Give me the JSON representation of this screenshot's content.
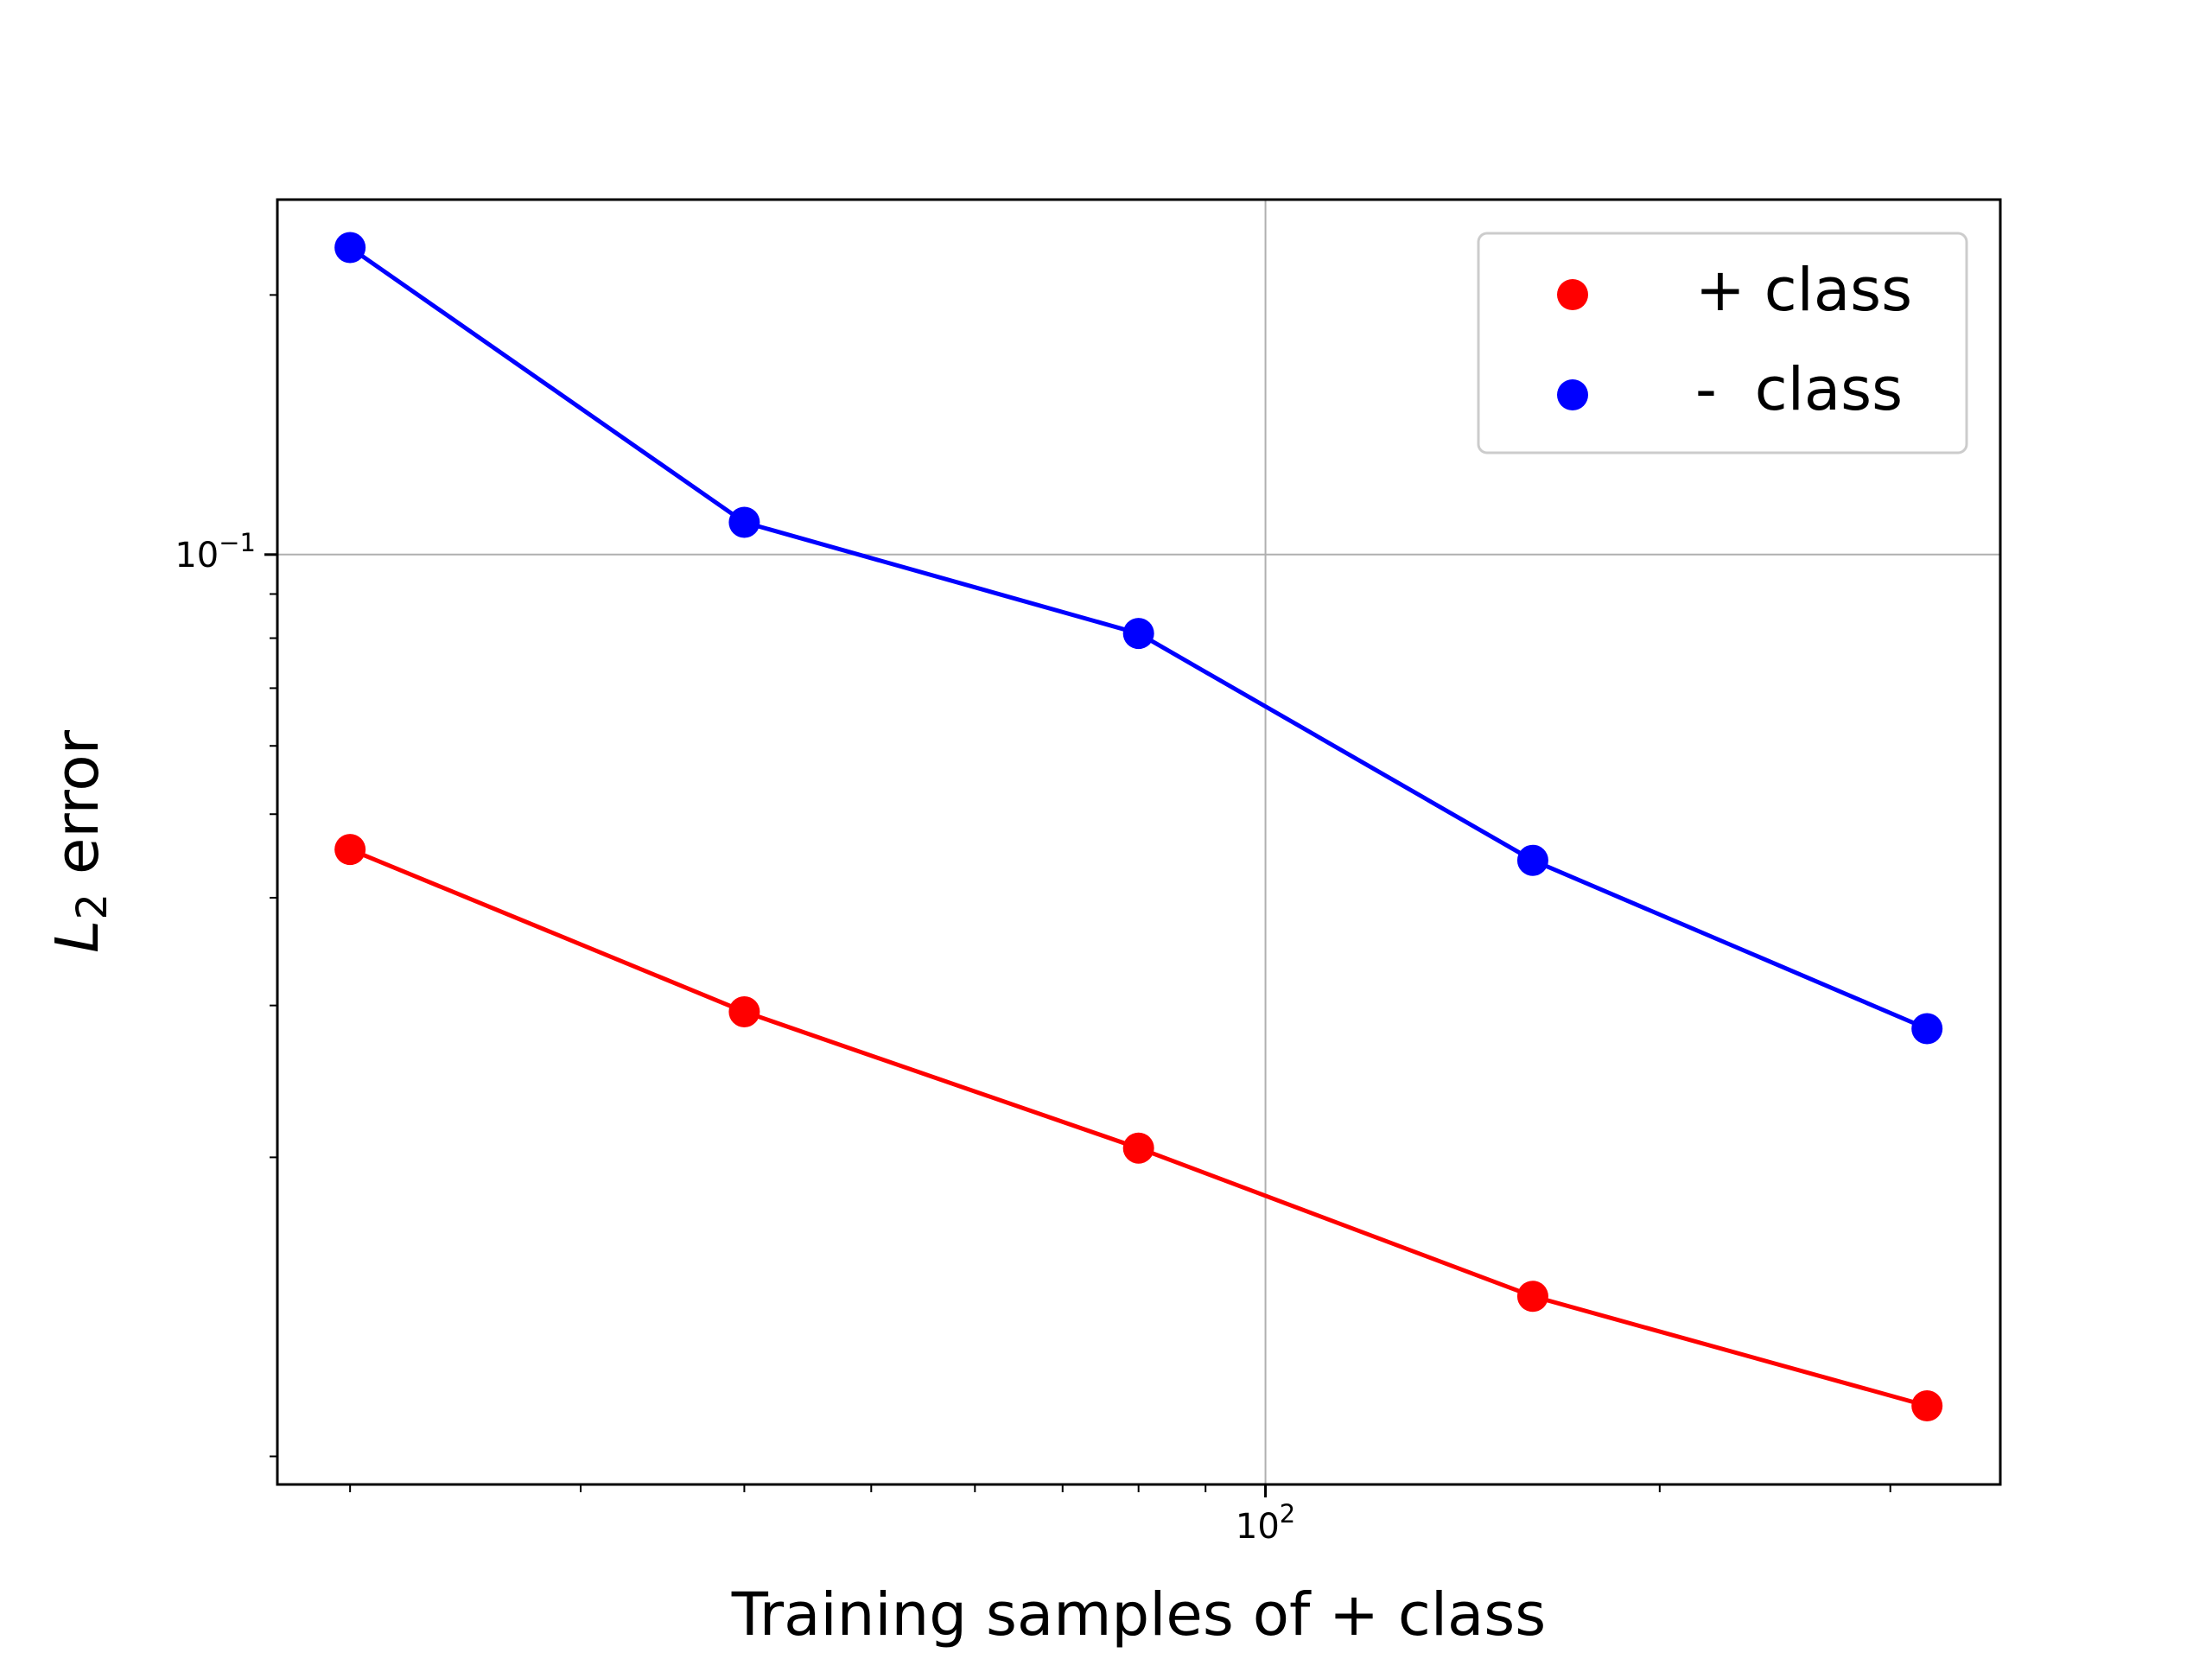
{
  "chart_data": {
    "type": "line",
    "xscale": "log",
    "yscale": "log",
    "x": [
      20,
      40,
      80,
      160,
      320
    ],
    "series": [
      {
        "name": "+ class",
        "color": "#ff0000",
        "values": [
          0.0455,
          0.0295,
          0.0205,
          0.0138,
          0.0103
        ]
      },
      {
        "name": "-  class",
        "color": "#0000ff",
        "values": [
          0.227,
          0.109,
          0.081,
          0.0442,
          0.0282
        ]
      }
    ],
    "xlabel": "Training samples of + class",
    "ylabel_main": "L",
    "ylabel_sub": "2",
    "ylabel_rest": " error",
    "xlim": [
      17.6,
      364
    ],
    "ylim": [
      0.00835,
      0.258
    ],
    "xticks": [
      {
        "value": 100,
        "base": "10",
        "exp": "2"
      }
    ],
    "yticks": [
      {
        "value": 0.1,
        "base": "10",
        "exp": "−1"
      }
    ],
    "grid": true,
    "legend_position": "upper right"
  }
}
